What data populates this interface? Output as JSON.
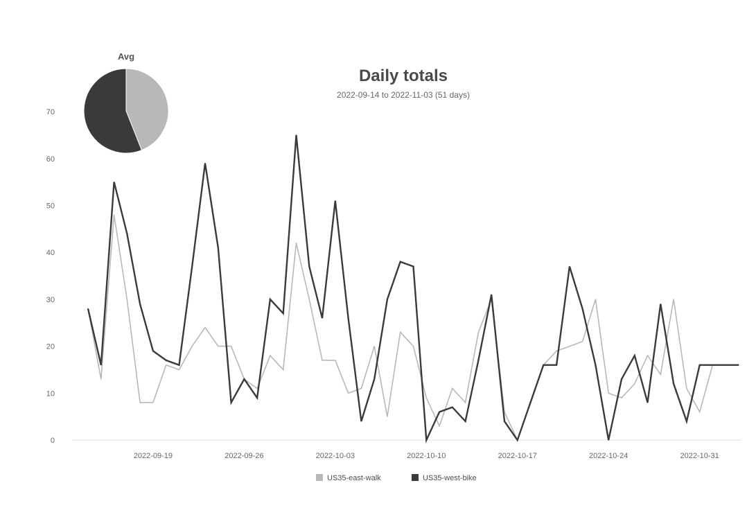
{
  "chart_data": {
    "type": "line",
    "title": "Daily totals",
    "subtitle": "2022-09-14 to 2022-11-03 (51 days)",
    "ylim": [
      0,
      75
    ],
    "yticks": [
      0,
      10,
      20,
      30,
      40,
      50,
      60,
      70
    ],
    "grid": false,
    "x": [
      "2022-09-14",
      "2022-09-15",
      "2022-09-16",
      "2022-09-17",
      "2022-09-18",
      "2022-09-19",
      "2022-09-20",
      "2022-09-21",
      "2022-09-22",
      "2022-09-23",
      "2022-09-24",
      "2022-09-25",
      "2022-09-26",
      "2022-09-27",
      "2022-09-28",
      "2022-09-29",
      "2022-09-30",
      "2022-10-01",
      "2022-10-02",
      "2022-10-03",
      "2022-10-04",
      "2022-10-05",
      "2022-10-06",
      "2022-10-07",
      "2022-10-08",
      "2022-10-09",
      "2022-10-10",
      "2022-10-11",
      "2022-10-12",
      "2022-10-13",
      "2022-10-14",
      "2022-10-15",
      "2022-10-16",
      "2022-10-17",
      "2022-10-18",
      "2022-10-19",
      "2022-10-20",
      "2022-10-21",
      "2022-10-22",
      "2022-10-23",
      "2022-10-24",
      "2022-10-25",
      "2022-10-26",
      "2022-10-27",
      "2022-10-28",
      "2022-10-29",
      "2022-10-30",
      "2022-10-31",
      "2022-11-01",
      "2022-11-02",
      "2022-11-03"
    ],
    "xticks": [
      "2022-09-19",
      "2022-09-26",
      "2022-10-03",
      "2022-10-10",
      "2022-10-17",
      "2022-10-24",
      "2022-10-31"
    ],
    "series": [
      {
        "name": "US35-east-walk",
        "color": "#b8b8b8",
        "values": [
          28,
          13,
          48,
          30,
          8,
          8,
          16,
          15,
          20,
          24,
          20,
          20,
          13,
          11,
          18,
          15,
          42,
          30,
          17,
          17,
          10,
          11,
          20,
          5,
          23,
          20,
          9,
          3,
          11,
          8,
          23,
          30,
          6,
          0,
          8,
          16,
          19,
          20,
          21,
          30,
          10,
          9,
          12,
          18,
          14,
          30,
          11,
          6,
          16,
          16,
          16
        ]
      },
      {
        "name": "US35-west-bike",
        "color": "#3a3a3a",
        "values": [
          28,
          16,
          55,
          44,
          29,
          19,
          17,
          16,
          37,
          59,
          41,
          8,
          13,
          9,
          30,
          27,
          65,
          37,
          26,
          51,
          26,
          4,
          13,
          30,
          38,
          37,
          0,
          6,
          7,
          4,
          17,
          31,
          4,
          0,
          8,
          16,
          16,
          37,
          28,
          16,
          0,
          13,
          18,
          8,
          29,
          12,
          4,
          16,
          16,
          16,
          16
        ]
      }
    ],
    "pie": {
      "title": "Avg",
      "slices": [
        {
          "name": "US35-east-walk",
          "value": 44,
          "color": "#b8b8b8"
        },
        {
          "name": "US35-west-bike",
          "value": 56,
          "color": "#3a3a3a"
        }
      ]
    },
    "legend": {
      "placement": "bottom-center",
      "items": [
        {
          "label": "US35-east-walk",
          "color": "#b8b8b8"
        },
        {
          "label": "US35-west-bike",
          "color": "#3a3a3a"
        }
      ]
    }
  }
}
